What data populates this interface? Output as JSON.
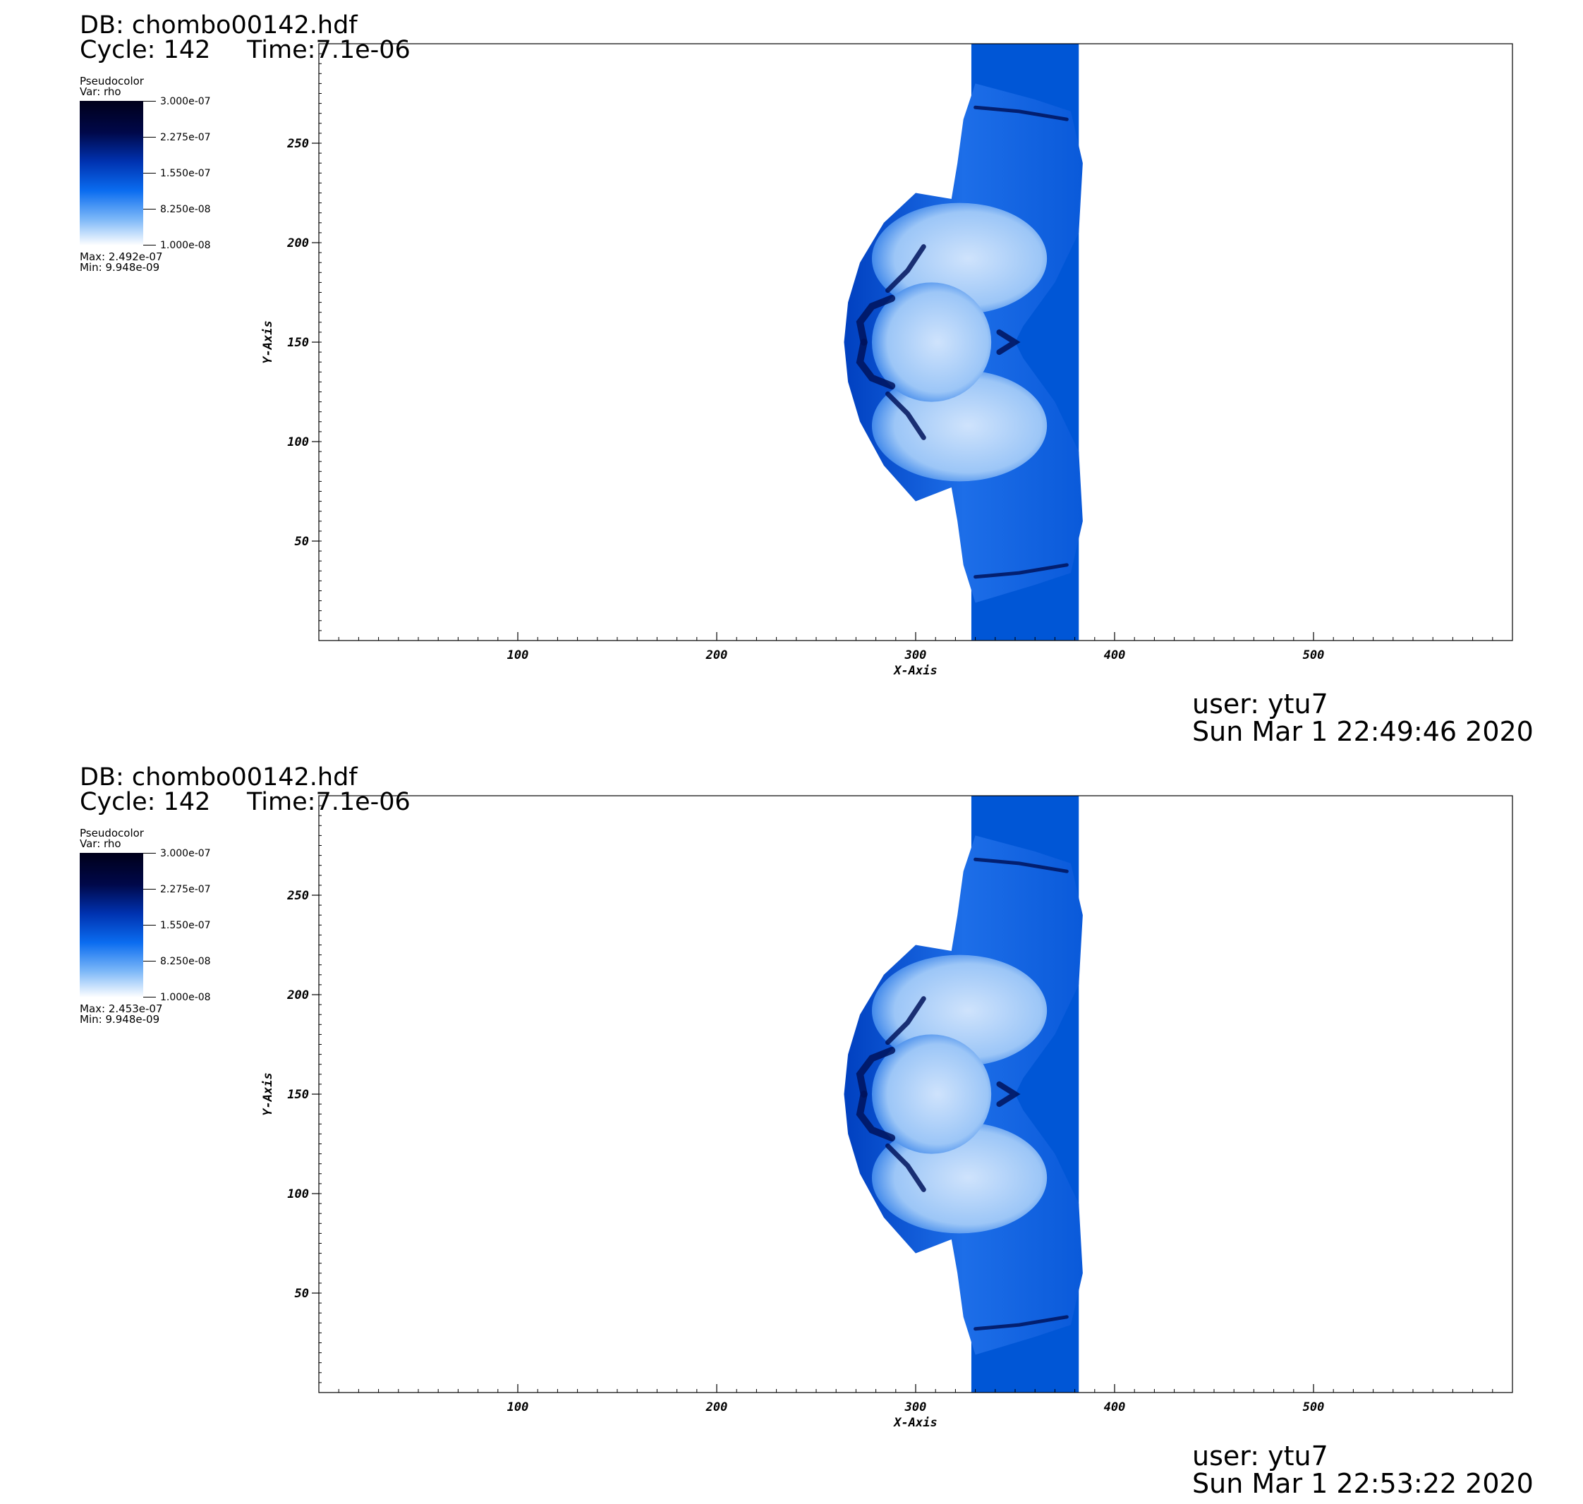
{
  "colors": {
    "field_blue": "#0056d6",
    "light_blue": "#cfe3fc",
    "dark_blue": "#00135c",
    "background": "#ffffff"
  },
  "panels": [
    {
      "db": "DB: chombo00142.hdf",
      "cycle": "Cycle: 142",
      "time": "Time:7.1e-06",
      "legend": {
        "title": "Pseudocolor",
        "var": "Var: rho",
        "ticks": [
          "3.000e-07",
          "2.275e-07",
          "1.550e-07",
          "8.250e-08",
          "1.000e-08"
        ],
        "max": "Max:  2.492e-07",
        "min": "Min:  9.948e-09"
      },
      "user": "user: ytu7",
      "date": "Sun Mar  1 22:49:46 2020"
    },
    {
      "db": "DB: chombo00142.hdf",
      "cycle": "Cycle: 142",
      "time": "Time:7.1e-06",
      "legend": {
        "title": "Pseudocolor",
        "var": "Var: rho",
        "ticks": [
          "3.000e-07",
          "2.275e-07",
          "1.550e-07",
          "8.250e-08",
          "1.000e-08"
        ],
        "max": "Max:  2.453e-07",
        "min": "Min:  9.948e-09"
      },
      "user": "user: ytu7",
      "date": "Sun Mar  1 22:53:22 2020"
    }
  ],
  "chart_data": [
    {
      "type": "heatmap",
      "title": "",
      "variable": "rho",
      "xlabel": "X-Axis",
      "ylabel": "Y-Axis",
      "xlim": [
        0,
        600
      ],
      "ylim": [
        0,
        300
      ],
      "xticks": [
        100,
        200,
        300,
        400,
        500
      ],
      "yticks": [
        50,
        100,
        150,
        200,
        250
      ],
      "colorbar_range": [
        1e-08,
        3e-07
      ],
      "data_max": 2.492e-07,
      "data_min": 9.948e-09,
      "features": {
        "jet_column_x": [
          328,
          382
        ],
        "shock_front_leftmost_x": 264,
        "shock_front_rightmost_x": 388,
        "symmetry_axis_y": 150
      }
    },
    {
      "type": "heatmap",
      "title": "",
      "variable": "rho",
      "xlabel": "X-Axis",
      "ylabel": "Y-Axis",
      "xlim": [
        0,
        600
      ],
      "ylim": [
        0,
        300
      ],
      "xticks": [
        100,
        200,
        300,
        400,
        500
      ],
      "yticks": [
        50,
        100,
        150,
        200,
        250
      ],
      "colorbar_range": [
        1e-08,
        3e-07
      ],
      "data_max": 2.453e-07,
      "data_min": 9.948e-09,
      "features": {
        "jet_column_x": [
          328,
          382
        ],
        "shock_front_leftmost_x": 264,
        "shock_front_rightmost_x": 388,
        "symmetry_axis_y": 150
      }
    }
  ]
}
